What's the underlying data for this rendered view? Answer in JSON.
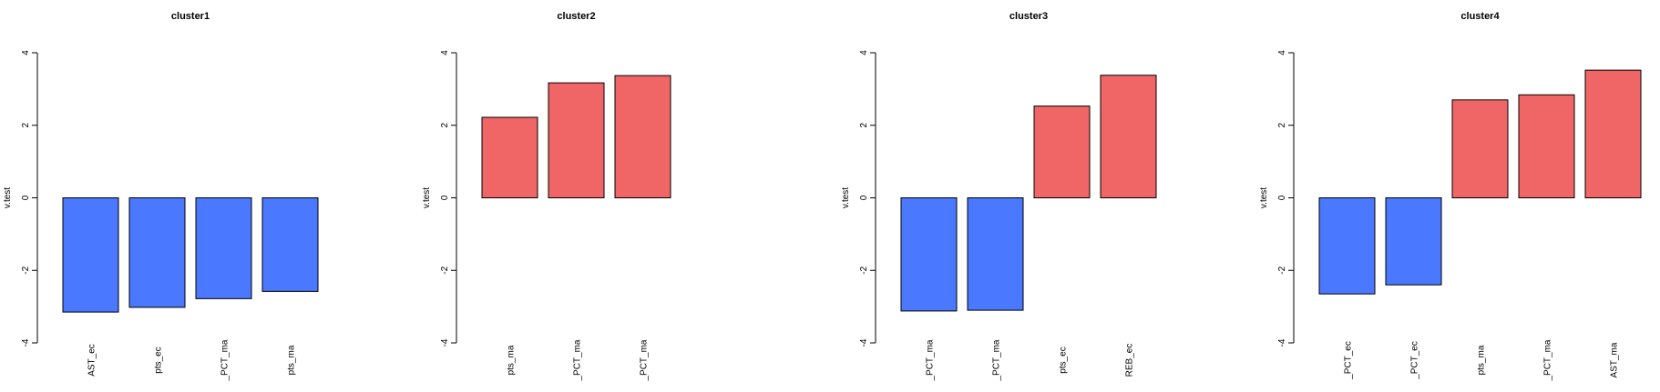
{
  "colors": {
    "negative": "#4a78ff",
    "positive": "#f06565",
    "stroke": "#000000"
  },
  "chart_data": [
    {
      "type": "bar",
      "title": "cluster1",
      "ylabel": "v.test",
      "ylim": [
        -4,
        4
      ],
      "yticks": [
        -4,
        -2,
        0,
        2,
        4
      ],
      "categories": [
        "AST_ec",
        "pts_ec",
        "_PCT_ma",
        "pts_ma"
      ],
      "values": [
        -3.15,
        -3.02,
        -2.78,
        -2.58
      ],
      "grid": false
    },
    {
      "type": "bar",
      "title": "cluster2",
      "ylabel": "v.test",
      "ylim": [
        -4,
        4
      ],
      "yticks": [
        -4,
        -2,
        0,
        2,
        4
      ],
      "categories": [
        "pts_ma",
        "_PCT_ma",
        "_PCT_ma"
      ],
      "values": [
        2.22,
        3.17,
        3.37
      ],
      "grid": false
    },
    {
      "type": "bar",
      "title": "cluster3",
      "ylabel": "v.test",
      "ylim": [
        -4,
        4
      ],
      "yticks": [
        -4,
        -2,
        0,
        2,
        4
      ],
      "categories": [
        "_PCT_ma",
        "_PCT_ma",
        "pts_ec",
        "REB_ec"
      ],
      "values": [
        -3.12,
        -3.1,
        2.53,
        3.38
      ],
      "grid": false
    },
    {
      "type": "bar",
      "title": "cluster4",
      "ylabel": "v.test",
      "ylim": [
        -4,
        4
      ],
      "yticks": [
        -4,
        -2,
        0,
        2,
        4
      ],
      "categories": [
        "_PCT_ec",
        "_PCT_ec",
        "pts_ma",
        "_PCT_ma",
        "AST_ma"
      ],
      "values": [
        -2.65,
        -2.4,
        2.7,
        2.84,
        3.52
      ],
      "grid": false
    }
  ]
}
